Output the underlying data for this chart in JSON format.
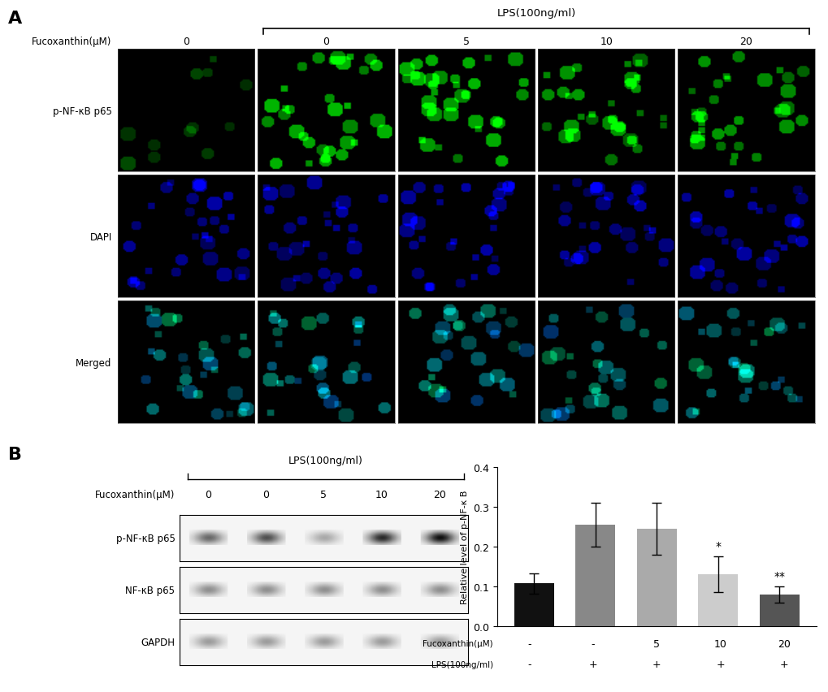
{
  "panel_A_label": "A",
  "panel_B_label": "B",
  "lps_label": "LPS(100ng/ml)",
  "fucoxanthin_label": "Fucoxanthin(μM)",
  "fucoxanthin_conc_A": [
    "0",
    "0",
    "5",
    "10",
    "20"
  ],
  "row_labels": [
    "p-NF-κB p65",
    "DAPI",
    "Merged"
  ],
  "wb_row_labels": [
    "p-NF-κB p65",
    "NF-κB p65",
    "GAPDH"
  ],
  "bar_values": [
    0.107,
    0.255,
    0.245,
    0.13,
    0.08
  ],
  "bar_errors": [
    0.025,
    0.055,
    0.065,
    0.045,
    0.02
  ],
  "bar_colors": [
    "#111111",
    "#888888",
    "#aaaaaa",
    "#cccccc",
    "#555555"
  ],
  "bar_labels": [
    "-",
    "-",
    "5",
    "10",
    "20"
  ],
  "lps_row": [
    "-",
    "+",
    "+",
    "+",
    "+"
  ],
  "ylabel": "Relative level of p-NF-κ B",
  "ylim": [
    0,
    0.4
  ],
  "yticks": [
    0.0,
    0.1,
    0.2,
    0.3,
    0.4
  ],
  "significance": [
    "",
    "",
    "",
    "*",
    "**"
  ],
  "sig_fontsize": 10,
  "background_color": "#ffffff"
}
